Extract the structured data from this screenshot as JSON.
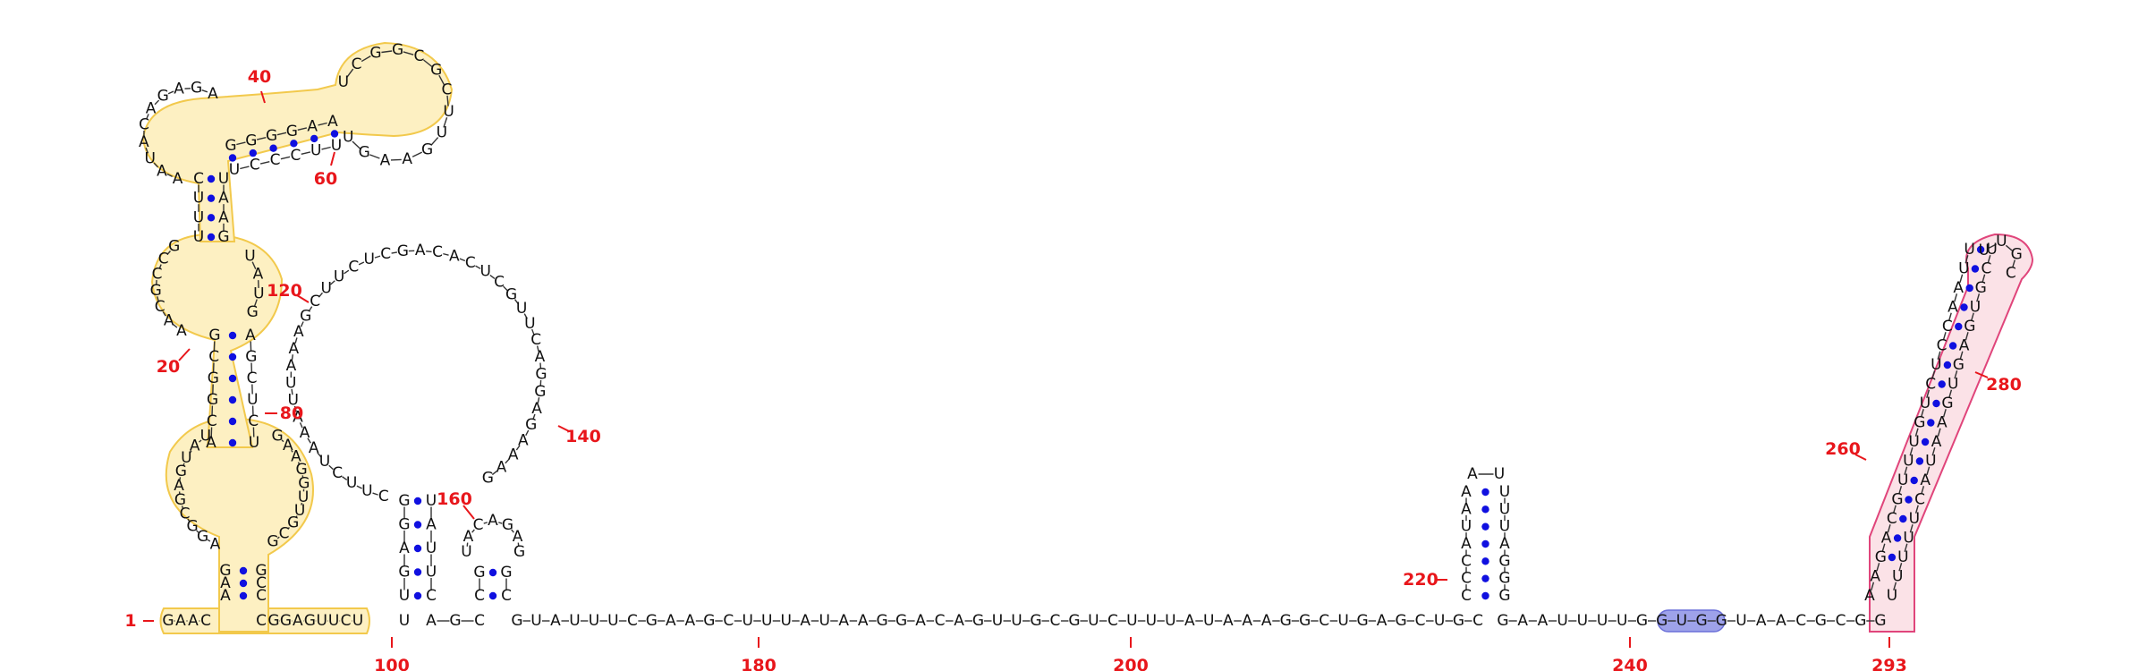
{
  "diagram": {
    "type": "rna-secondary-structure",
    "colors": {
      "yellow_domain": "#fdf0c2",
      "pink_domain": "#fbe2e7",
      "blue_motif": "#9ea2ea",
      "base_pair_dot": "#1010e0",
      "position_label": "#e8161b"
    },
    "labels": [
      "1",
      "20",
      "40",
      "60",
      "80",
      "100",
      "120",
      "140",
      "160",
      "180",
      "200",
      "220",
      "240",
      "260",
      "280",
      "293"
    ],
    "backbone_tail": "GAAUUUUGGUGGUAACGCGG",
    "loop_120_140": "CUUCUAAAUUAAAGCUUCUC",
    "linker_180_200": "GUAUUUCGAAGCUUUAUAAGGACAGUUGCGUCUUUAUAAAGGCUGAGCUGC"
  }
}
